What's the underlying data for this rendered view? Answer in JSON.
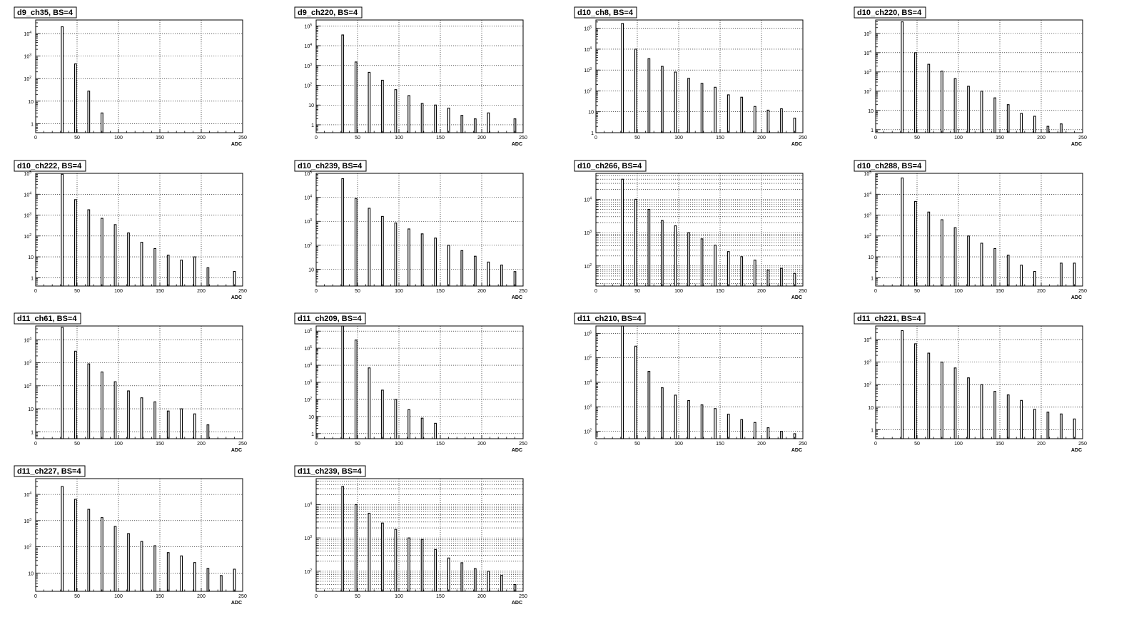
{
  "axis_label": "ADC",
  "x_ticks": [
    0,
    50,
    100,
    150,
    200,
    250
  ],
  "chart_data": [
    {
      "type": "bar",
      "title": "d9_ch35, BS=4",
      "xlabel": "ADC",
      "ylabel": "",
      "xlim": [
        0,
        250
      ],
      "ylim": [
        0.4,
        40000
      ],
      "log_y": true,
      "dense_grid": false,
      "x": [
        32,
        48,
        64,
        80
      ],
      "values": [
        20000,
        450,
        28,
        3
      ]
    },
    {
      "type": "bar",
      "title": "d9_ch220, BS=4",
      "xlabel": "ADC",
      "ylabel": "",
      "xlim": [
        0,
        250
      ],
      "ylim": [
        0.4,
        200000
      ],
      "log_y": true,
      "dense_grid": false,
      "x": [
        32,
        48,
        64,
        80,
        96,
        112,
        128,
        144,
        160,
        176,
        192,
        208,
        240
      ],
      "values": [
        35000,
        1500,
        450,
        180,
        60,
        30,
        12,
        10,
        7,
        3,
        2,
        4,
        2
      ]
    },
    {
      "type": "bar",
      "title": "d10_ch8, BS=4",
      "xlabel": "ADC",
      "ylabel": "",
      "xlim": [
        0,
        250
      ],
      "ylim": [
        1,
        250000
      ],
      "log_y": true,
      "dense_grid": false,
      "x": [
        32,
        48,
        64,
        80,
        96,
        112,
        128,
        144,
        160,
        176,
        192,
        208,
        224,
        240
      ],
      "values": [
        170000,
        10000,
        3500,
        1500,
        800,
        400,
        230,
        150,
        65,
        50,
        18,
        12,
        14,
        5
      ]
    },
    {
      "type": "bar",
      "title": "d10_ch220, BS=4",
      "xlabel": "ADC",
      "ylabel": "",
      "xlim": [
        0,
        250
      ],
      "ylim": [
        0.7,
        500000
      ],
      "log_y": true,
      "dense_grid": false,
      "x": [
        32,
        48,
        64,
        80,
        96,
        112,
        128,
        144,
        160,
        176,
        192,
        208,
        224
      ],
      "values": [
        400000,
        10000,
        2500,
        1100,
        450,
        180,
        100,
        45,
        20,
        7,
        5,
        1.5,
        2
      ]
    },
    {
      "type": "bar",
      "title": "d10_ch222, BS=4",
      "xlabel": "ADC",
      "ylabel": "",
      "xlim": [
        0,
        250
      ],
      "ylim": [
        0.4,
        100000
      ],
      "log_y": true,
      "dense_grid": false,
      "x": [
        32,
        48,
        64,
        80,
        96,
        112,
        128,
        144,
        160,
        176,
        192,
        208,
        240
      ],
      "values": [
        90000,
        5500,
        1800,
        700,
        350,
        140,
        50,
        25,
        12,
        7,
        10,
        3,
        2
      ]
    },
    {
      "type": "bar",
      "title": "d10_ch239, BS=4",
      "xlabel": "ADC",
      "ylabel": "",
      "xlim": [
        0,
        250
      ],
      "ylim": [
        2,
        100000
      ],
      "log_y": true,
      "dense_grid": false,
      "x": [
        32,
        48,
        64,
        80,
        96,
        112,
        128,
        144,
        160,
        176,
        192,
        208,
        224,
        240
      ],
      "values": [
        60000,
        9000,
        3500,
        1600,
        850,
        480,
        300,
        200,
        100,
        60,
        35,
        20,
        15,
        8
      ]
    },
    {
      "type": "bar",
      "title": "d10_ch266, BS=4",
      "xlabel": "ADC",
      "ylabel": "",
      "xlim": [
        0,
        250
      ],
      "ylim": [
        25,
        60000
      ],
      "log_y": true,
      "dense_grid": true,
      "x": [
        32,
        48,
        64,
        80,
        96,
        112,
        128,
        144,
        160,
        176,
        192,
        208,
        224,
        240
      ],
      "values": [
        40000,
        10000,
        5000,
        2300,
        1600,
        1000,
        650,
        420,
        270,
        190,
        150,
        75,
        85,
        60
      ]
    },
    {
      "type": "bar",
      "title": "d10_ch288, BS=4",
      "xlabel": "ADC",
      "ylabel": "",
      "xlim": [
        0,
        250
      ],
      "ylim": [
        0.4,
        100000
      ],
      "log_y": true,
      "dense_grid": false,
      "x": [
        32,
        48,
        64,
        80,
        96,
        112,
        128,
        144,
        160,
        176,
        192,
        224,
        240
      ],
      "values": [
        60000,
        4500,
        1400,
        600,
        250,
        100,
        45,
        25,
        12,
        4,
        2,
        5,
        5
      ]
    },
    {
      "type": "bar",
      "title": "d11_ch61, BS=4",
      "xlabel": "ADC",
      "ylabel": "",
      "xlim": [
        0,
        250
      ],
      "ylim": [
        0.5,
        40000
      ],
      "log_y": true,
      "dense_grid": false,
      "x": [
        32,
        48,
        64,
        80,
        96,
        112,
        128,
        144,
        160,
        176,
        192,
        208
      ],
      "values": [
        35000,
        3200,
        900,
        400,
        150,
        60,
        30,
        20,
        8,
        10,
        6,
        2
      ]
    },
    {
      "type": "bar",
      "title": "d11_ch209, BS=4",
      "xlabel": "ADC",
      "ylabel": "",
      "xlim": [
        0,
        250
      ],
      "ylim": [
        0.5,
        2000000
      ],
      "log_y": true,
      "dense_grid": false,
      "x": [
        32,
        48,
        64,
        80,
        96,
        112,
        128,
        144
      ],
      "values": [
        2000000,
        300000,
        7000,
        350,
        100,
        25,
        8,
        4
      ]
    },
    {
      "type": "bar",
      "title": "d11_ch210, BS=4",
      "xlabel": "ADC",
      "ylabel": "",
      "xlim": [
        0,
        250
      ],
      "ylim": [
        50,
        2000000
      ],
      "log_y": true,
      "dense_grid": false,
      "x": [
        32,
        48,
        64,
        80,
        96,
        112,
        128,
        144,
        160,
        176,
        192,
        208,
        224,
        240
      ],
      "values": [
        2000000,
        300000,
        28000,
        6000,
        3000,
        1800,
        1200,
        850,
        500,
        300,
        230,
        140,
        100,
        80
      ]
    },
    {
      "type": "bar",
      "title": "d11_ch221, BS=4",
      "xlabel": "ADC",
      "ylabel": "",
      "xlim": [
        0,
        250
      ],
      "ylim": [
        0.4,
        40000
      ],
      "log_y": true,
      "dense_grid": false,
      "x": [
        32,
        48,
        64,
        80,
        96,
        112,
        128,
        144,
        160,
        176,
        192,
        208,
        224,
        240
      ],
      "values": [
        25000,
        6500,
        2500,
        1000,
        550,
        200,
        100,
        50,
        35,
        20,
        8,
        6,
        5,
        3
      ]
    },
    {
      "type": "bar",
      "title": "d11_ch227, BS=4",
      "xlabel": "ADC",
      "ylabel": "",
      "xlim": [
        0,
        250
      ],
      "ylim": [
        2,
        40000
      ],
      "log_y": true,
      "dense_grid": false,
      "x": [
        32,
        48,
        64,
        80,
        96,
        112,
        128,
        144,
        160,
        176,
        192,
        208,
        224,
        240
      ],
      "values": [
        20000,
        6500,
        2700,
        1300,
        600,
        320,
        160,
        110,
        60,
        45,
        25,
        15,
        8,
        14
      ]
    },
    {
      "type": "bar",
      "title": "d11_ch239, BS=4",
      "xlabel": "ADC",
      "ylabel": "",
      "xlim": [
        0,
        250
      ],
      "ylim": [
        25,
        60000
      ],
      "log_y": true,
      "dense_grid": true,
      "x": [
        32,
        48,
        64,
        80,
        96,
        112,
        128,
        144,
        160,
        176,
        192,
        208,
        224,
        240
      ],
      "values": [
        35000,
        10000,
        5500,
        2800,
        1800,
        1000,
        900,
        450,
        250,
        180,
        120,
        100,
        75,
        40
      ]
    }
  ]
}
